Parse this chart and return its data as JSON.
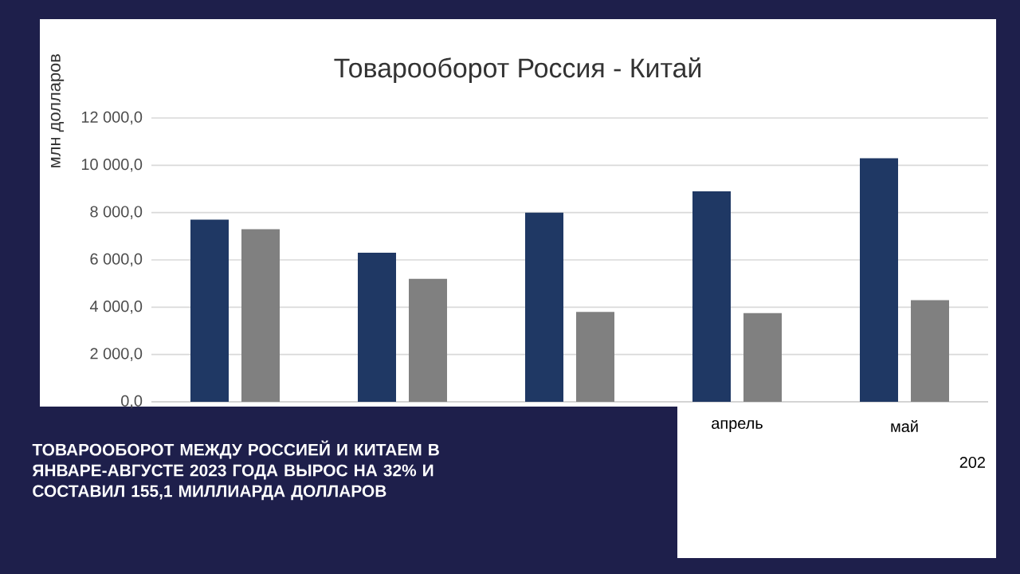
{
  "chart_data": {
    "type": "bar",
    "title": "Товарооборот Россия - Китай",
    "ylabel": "млн долларов",
    "categories": [
      null,
      null,
      null,
      "апрель",
      "май"
    ],
    "series": [
      {
        "color": "#1f3864",
        "values": [
          7700,
          6300,
          8000,
          8900,
          10300
        ]
      },
      {
        "color": "#808080",
        "values": [
          7300,
          5200,
          3800,
          3750,
          4300
        ]
      }
    ],
    "ylim": [
      0,
      12000
    ],
    "yticks": [
      {
        "value": 0,
        "label": "0,0"
      },
      {
        "value": 2000,
        "label": "2 000,0"
      },
      {
        "value": 4000,
        "label": "4 000,0"
      },
      {
        "value": 6000,
        "label": "6 000,0"
      },
      {
        "value": 8000,
        "label": "8 000,0"
      },
      {
        "value": 10000,
        "label": "10 000,0"
      },
      {
        "value": 12000,
        "label": "12 000,0"
      }
    ],
    "grid": "y",
    "annotations": [
      "ТОВАРООБОРОТ МЕЖДУ РОССИЕЙ И КИТАЕМ В ЯНВАРЕ-АВГУСТЕ 2023 ГОДА ВЫРОС НА 32% И СОСТАВИЛ 155,1 МИЛЛИАРДА ДОЛЛАРОВ",
      "202"
    ]
  }
}
